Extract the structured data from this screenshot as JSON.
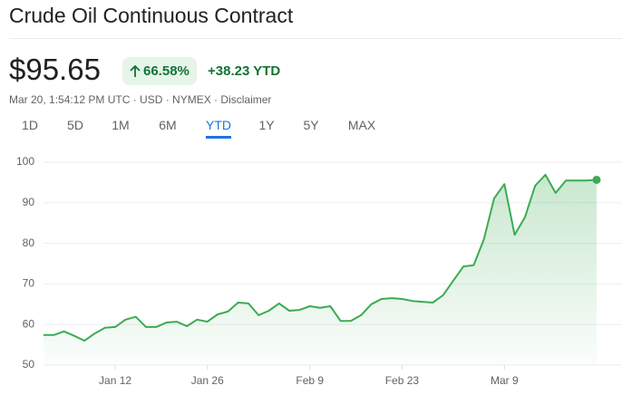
{
  "header": {
    "title": "Crude Oil Continuous Contract",
    "price": "$95.65",
    "change_percent": "66.58%",
    "change": "+38.23 YTD",
    "meta": "Mar 20, 1:54:12 PM UTC · USD · NYMEX ·",
    "disclaimer": "Disclaimer"
  },
  "tabs": {
    "items": [
      "1D",
      "5D",
      "1M",
      "6M",
      "YTD",
      "1Y",
      "5Y",
      "MAX"
    ],
    "selected": 4
  },
  "chart_data": {
    "type": "line",
    "color": "#3cab52",
    "categories": [
      null,
      null,
      null,
      null,
      null,
      null,
      null,
      "Jan 12",
      null,
      null,
      null,
      null,
      null,
      null,
      null,
      null,
      "Jan 26",
      null,
      null,
      null,
      null,
      null,
      null,
      null,
      null,
      null,
      "Feb 9",
      null,
      null,
      null,
      null,
      null,
      null,
      null,
      null,
      "Feb 23",
      null,
      null,
      null,
      null,
      null,
      null,
      null,
      null,
      null,
      "Mar 9",
      null,
      null,
      null,
      null,
      null,
      null,
      null,
      null,
      null
    ],
    "values": [
      57.4,
      57.4,
      58.3,
      57.2,
      56.0,
      57.8,
      59.2,
      59.4,
      61.2,
      61.9,
      59.4,
      59.4,
      60.5,
      60.7,
      59.6,
      61.2,
      60.7,
      62.5,
      63.2,
      65.4,
      65.2,
      62.3,
      63.4,
      65.2,
      63.4,
      63.6,
      64.5,
      64.1,
      64.5,
      60.9,
      60.9,
      62.3,
      65.0,
      66.3,
      66.5,
      66.3,
      65.8,
      65.6,
      65.4,
      67.2,
      70.8,
      74.3,
      74.6,
      81.0,
      91.1,
      94.6,
      82.1,
      86.4,
      94.2,
      96.9,
      92.4,
      95.5,
      95.5,
      95.5,
      95.65
    ],
    "ylim": [
      50,
      100
    ],
    "yticks": [
      50,
      60,
      70,
      80,
      90,
      100
    ],
    "grid": true
  }
}
